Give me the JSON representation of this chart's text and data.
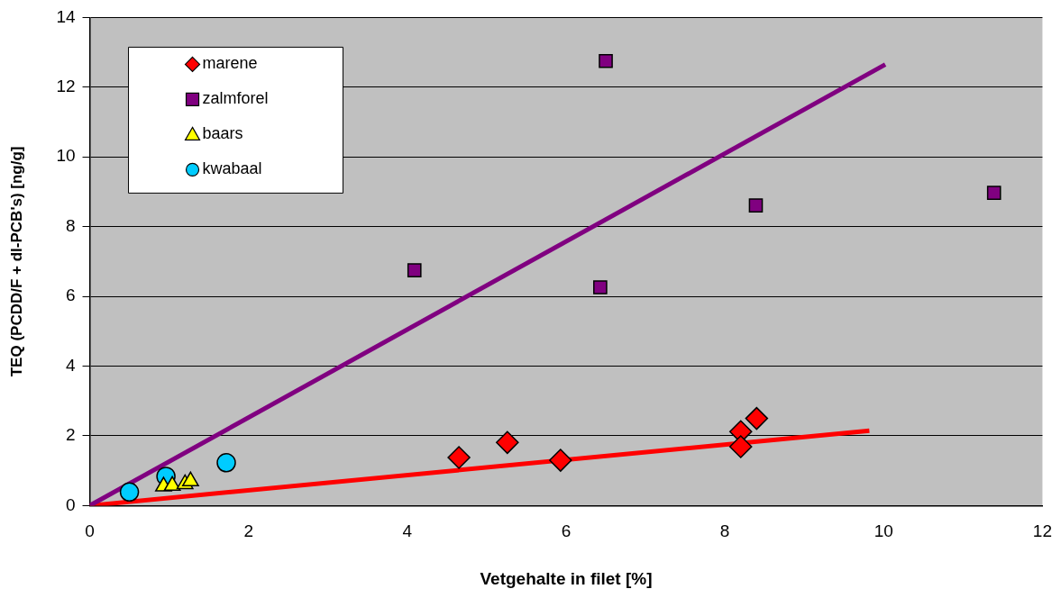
{
  "chart_data": {
    "type": "scatter",
    "xlabel": "Vetgehalte in filet [%]",
    "ylabel": "TEQ (PCDD/F + dl-PCB's) [ng/g]",
    "xlim": [
      0,
      12
    ],
    "xticks": [
      0,
      2,
      4,
      6,
      8,
      10,
      12
    ],
    "ylim": [
      0,
      14
    ],
    "yticks": [
      0,
      2,
      4,
      6,
      8,
      10,
      12,
      14
    ],
    "grid": "y",
    "legend": "top left",
    "series": [
      {
        "name": "marene",
        "color": "#ff0000",
        "marker": "diamond",
        "x": [
          4.65,
          5.26,
          5.93,
          8.2,
          8.2,
          8.4
        ],
        "values": [
          1.38,
          1.81,
          1.3,
          2.12,
          1.69,
          2.5
        ]
      },
      {
        "name": "zalmforel",
        "color": "#800080",
        "marker": "square",
        "x": [
          6.5,
          4.09,
          6.43,
          8.39,
          11.39
        ],
        "values": [
          12.75,
          6.75,
          6.26,
          8.61,
          8.97
        ]
      },
      {
        "name": "baars",
        "color": "#ffff00",
        "marker": "triangle",
        "x": [
          0.93,
          1.04,
          1.2,
          1.27
        ],
        "values": [
          0.55,
          0.57,
          0.62,
          0.7
        ]
      },
      {
        "name": "kwabaal",
        "color": "#00ccff",
        "marker": "circle",
        "x": [
          0.5,
          0.96,
          1.72
        ],
        "values": [
          0.39,
          0.84,
          1.23
        ]
      },
      {
        "type": "line",
        "color": "#800080",
        "marker": "none",
        "x": [
          0,
          10.02
        ],
        "values": [
          0,
          12.65
        ]
      },
      {
        "type": "line",
        "color": "#ff0000",
        "marker": "none",
        "x": [
          0,
          9.82
        ],
        "values": [
          0,
          2.15
        ]
      }
    ]
  }
}
